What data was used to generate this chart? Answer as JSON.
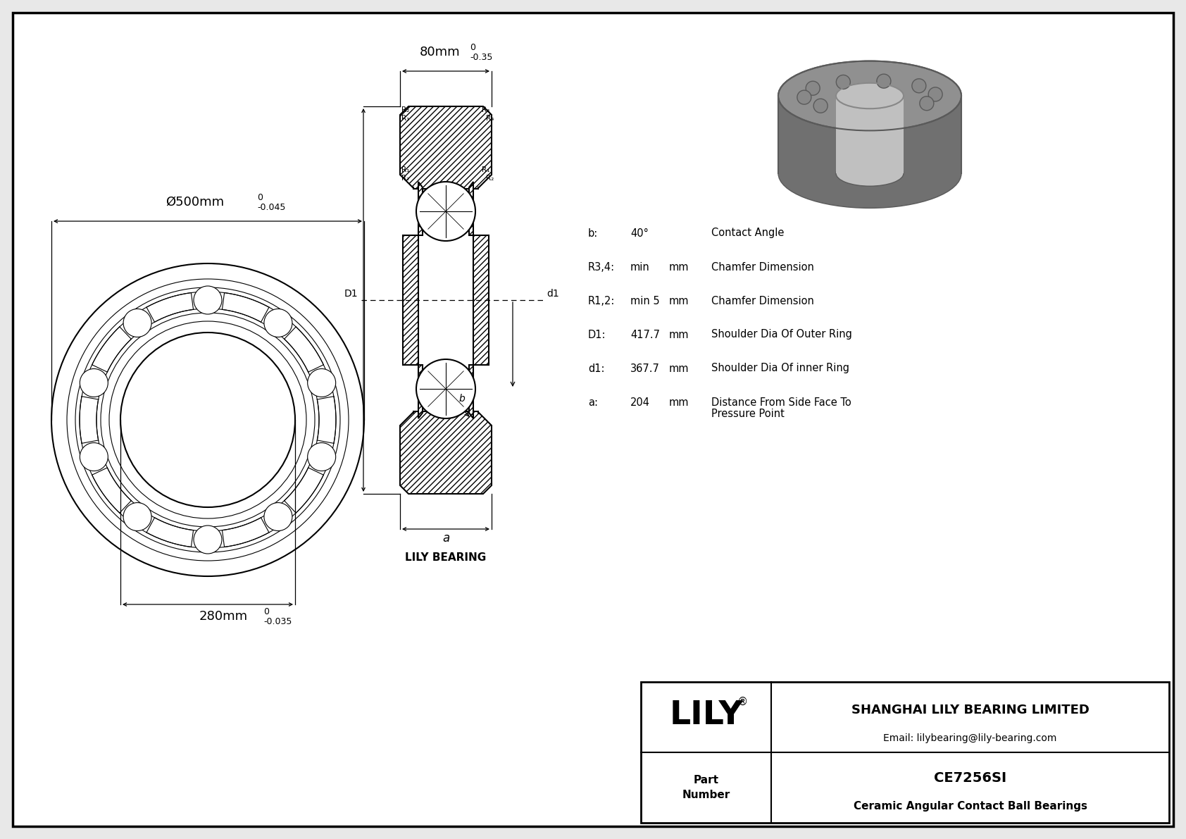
{
  "background_color": "#e8e8e8",
  "drawing_bg": "#ffffff",
  "outer_diameter_label": "Ø500mm",
  "outer_tol_upper": "0",
  "outer_tol": "-0.045",
  "inner_diameter_label": "280mm",
  "inner_tol_upper": "0",
  "inner_tol": "-0.035",
  "width_label": "80mm",
  "width_tol_upper": "0",
  "width_tol": "-0.35",
  "specs": [
    {
      "param": "b:",
      "value": "40°",
      "unit": "",
      "desc": "Contact Angle"
    },
    {
      "param": "R3,4:",
      "value": "min",
      "unit": "mm",
      "desc": "Chamfer Dimension"
    },
    {
      "param": "R1,2:",
      "value": "min 5",
      "unit": "mm",
      "desc": "Chamfer Dimension"
    },
    {
      "param": "D1:",
      "value": "417.7",
      "unit": "mm",
      "desc": "Shoulder Dia Of Outer Ring"
    },
    {
      "param": "d1:",
      "value": "367.7",
      "unit": "mm",
      "desc": "Shoulder Dia Of inner Ring"
    },
    {
      "param": "a:",
      "value": "204",
      "unit": "mm",
      "desc": "Distance From Side Face To\nPressure Point"
    }
  ],
  "company": "SHANGHAI LILY BEARING LIMITED",
  "email": "Email: lilybearing@lily-bearing.com",
  "part_number": "CE7256SI",
  "part_type": "Ceramic Angular Contact Ball Bearings",
  "lily_bearing_label": "LILY BEARING",
  "lc": "#000000"
}
